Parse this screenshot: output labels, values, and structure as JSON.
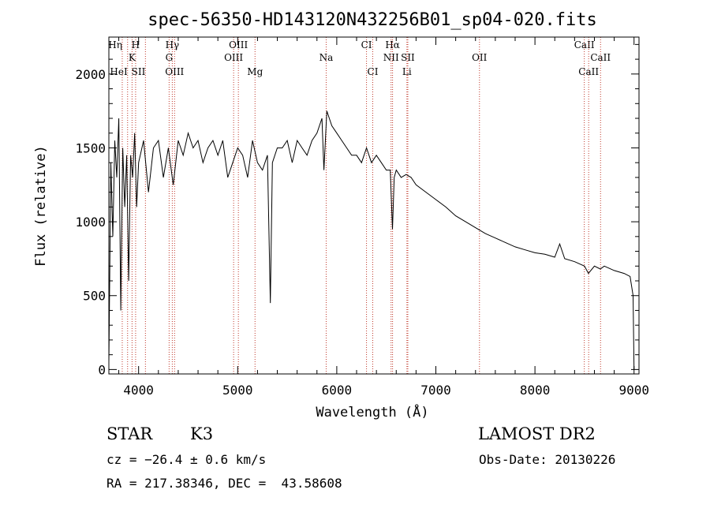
{
  "chart_data": {
    "type": "line",
    "title": "spec-56350-HD143120N432256B01_sp04-020.fits",
    "xlabel": "Wavelength (Å)",
    "ylabel": "Flux (relative)",
    "xlim": [
      3700,
      9050
    ],
    "ylim": [
      -30,
      2250
    ],
    "x_ticks": [
      4000,
      5000,
      6000,
      7000,
      8000,
      9000
    ],
    "y_ticks": [
      0,
      500,
      1000,
      1500,
      2000
    ],
    "grid": false,
    "legend": "none",
    "series": [
      {
        "x": [
          3700,
          3720,
          3740,
          3760,
          3780,
          3800,
          3820,
          3840,
          3860,
          3880,
          3900,
          3920,
          3940,
          3960,
          3980,
          4000,
          4050,
          4100,
          4150,
          4200,
          4250,
          4300,
          4350,
          4400,
          4450,
          4500,
          4550,
          4600,
          4650,
          4700,
          4750,
          4800,
          4850,
          4900,
          4950,
          5000,
          5050,
          5100,
          5150,
          5200,
          5250,
          5300,
          5330,
          5350,
          5400,
          5450,
          5500,
          5550,
          5600,
          5650,
          5700,
          5750,
          5800,
          5850,
          5870,
          5900,
          5950,
          6000,
          6050,
          6100,
          6150,
          6200,
          6250,
          6300,
          6350,
          6400,
          6450,
          6500,
          6540,
          6562,
          6580,
          6600,
          6650,
          6700,
          6750,
          6800,
          6900,
          7000,
          7100,
          7200,
          7300,
          7400,
          7500,
          7600,
          7700,
          7800,
          7900,
          8000,
          8100,
          8200,
          8250,
          8300,
          8400,
          8500,
          8540,
          8600,
          8660,
          8700,
          8800,
          8900,
          8960,
          8990,
          9000
        ],
        "y": [
          50,
          1400,
          900,
          1550,
          1300,
          1700,
          400,
          1500,
          1100,
          1450,
          600,
          1450,
          1300,
          1600,
          1100,
          1400,
          1550,
          1200,
          1500,
          1550,
          1300,
          1500,
          1250,
          1550,
          1450,
          1600,
          1500,
          1550,
          1400,
          1500,
          1550,
          1450,
          1550,
          1300,
          1400,
          1500,
          1450,
          1300,
          1550,
          1400,
          1350,
          1450,
          450,
          1400,
          1500,
          1500,
          1550,
          1400,
          1550,
          1500,
          1450,
          1550,
          1600,
          1700,
          1350,
          1750,
          1650,
          1600,
          1550,
          1500,
          1450,
          1450,
          1400,
          1500,
          1400,
          1450,
          1400,
          1350,
          1350,
          950,
          1300,
          1350,
          1300,
          1320,
          1300,
          1250,
          1200,
          1150,
          1100,
          1040,
          1000,
          960,
          920,
          890,
          860,
          830,
          810,
          790,
          780,
          760,
          850,
          750,
          730,
          700,
          650,
          700,
          680,
          700,
          670,
          650,
          630,
          500,
          0
        ]
      }
    ],
    "spectral_lines": [
      {
        "label": "Hη",
        "x": 3835,
        "row": 0,
        "anchor": "end"
      },
      {
        "label": "H",
        "x": 3970,
        "row": 0,
        "anchor": "middle"
      },
      {
        "label": "K",
        "x": 3934,
        "row": 1,
        "anchor": "middle"
      },
      {
        "label": "HeI",
        "x": 3889,
        "row": 2,
        "anchor": "end"
      },
      {
        "label": "SII",
        "x": 4069,
        "row": 2,
        "anchor": "end"
      },
      {
        "label": "Hγ",
        "x": 4340,
        "row": 0,
        "anchor": "middle"
      },
      {
        "label": "G",
        "x": 4308,
        "row": 1,
        "anchor": "middle"
      },
      {
        "label": "OIII",
        "x": 4363,
        "row": 2,
        "anchor": "middle"
      },
      {
        "label": "OIII",
        "x": 5007,
        "row": 0,
        "anchor": "middle"
      },
      {
        "label": "OIII",
        "x": 4959,
        "row": 1,
        "anchor": "middle"
      },
      {
        "label": "Mg",
        "x": 5175,
        "row": 2,
        "anchor": "middle"
      },
      {
        "label": "Na",
        "x": 5893,
        "row": 1,
        "anchor": "middle"
      },
      {
        "label": "CI",
        "x": 6300,
        "row": 0,
        "anchor": "middle"
      },
      {
        "label": "CI",
        "x": 6363,
        "row": 2,
        "anchor": "middle"
      },
      {
        "label": "Hα",
        "x": 6563,
        "row": 0,
        "anchor": "middle"
      },
      {
        "label": "NII",
        "x": 6548,
        "row": 1,
        "anchor": "middle"
      },
      {
        "label": "SII",
        "x": 6717,
        "row": 1,
        "anchor": "middle"
      },
      {
        "label": "Li",
        "x": 6708,
        "row": 2,
        "anchor": "middle"
      },
      {
        "label": "OII",
        "x": 7440,
        "row": 1,
        "anchor": "middle"
      },
      {
        "label": "CaII",
        "x": 8498,
        "row": 0,
        "anchor": "middle"
      },
      {
        "label": "CaII",
        "x": 8662,
        "row": 1,
        "anchor": "middle"
      },
      {
        "label": "CaII",
        "x": 8542,
        "row": 2,
        "anchor": "middle"
      }
    ]
  },
  "info": {
    "object_class": "STAR",
    "subclass": "K3",
    "survey": "LAMOST DR2",
    "cz": "cz = −26.4 ± 0.6 km/s",
    "obs_date": "Obs-Date: 20130226",
    "coords": "RA = 217.38346, DEC =  43.58608"
  }
}
